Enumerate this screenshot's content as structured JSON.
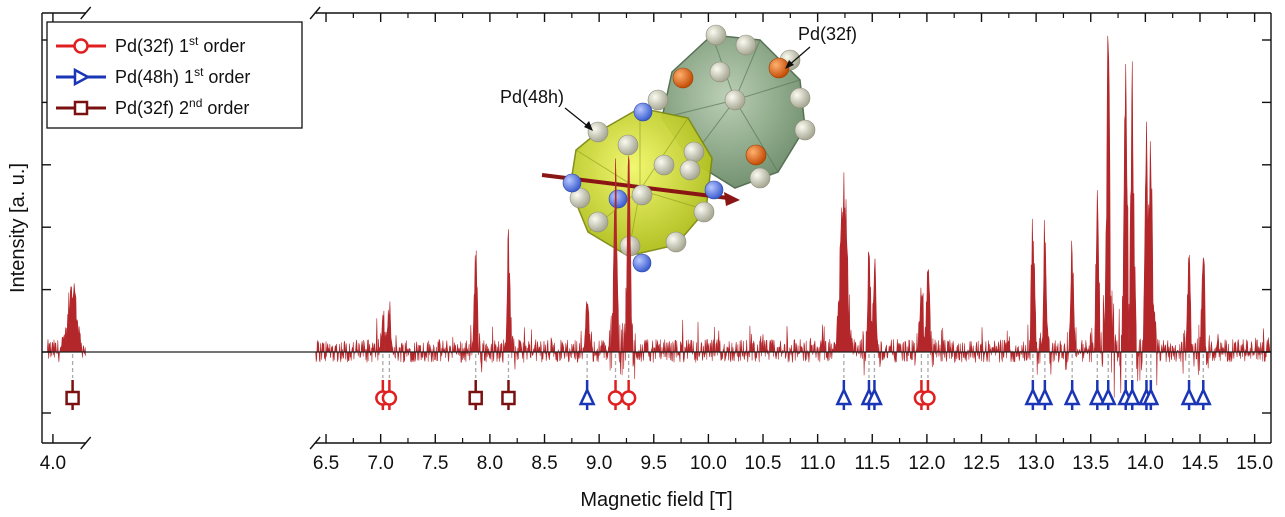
{
  "chart_data": {
    "type": "line",
    "xlabel": "Magnetic field [T]",
    "ylabel": "Intensity [a. u.]",
    "xlim": [
      3.9,
      15.15
    ],
    "axis_break": {
      "from": 4.3,
      "to": 6.4
    },
    "x_ticks": [
      4.0,
      6.5,
      7.0,
      7.5,
      8.0,
      8.5,
      9.0,
      9.5,
      10.0,
      10.5,
      11.0,
      11.5,
      12.0,
      12.5,
      13.0,
      13.5,
      14.0,
      14.5,
      15.0
    ],
    "x_tick_labels": [
      "4.0",
      "6.5",
      "7.0",
      "7.5",
      "8.0",
      "8.5",
      "9.0",
      "9.5",
      "10.0",
      "10.5",
      "11.0",
      "11.5",
      "12.0",
      "12.5",
      "13.0",
      "13.5",
      "14.0",
      "14.5",
      "15.0"
    ],
    "y_ticks_shown": true,
    "y_tick_labels_shown": false,
    "grid": false,
    "legend_position": "top-left",
    "spectrum": {
      "color": "#b3262a",
      "baseline_noise": 0.035,
      "peaks": [
        {
          "x": 4.18,
          "h": 0.2
        },
        {
          "x": 7.02,
          "h": 0.1
        },
        {
          "x": 7.08,
          "h": 0.14
        },
        {
          "x": 7.87,
          "h": 0.31
        },
        {
          "x": 8.17,
          "h": 0.33
        },
        {
          "x": 8.89,
          "h": 0.2
        },
        {
          "x": 9.15,
          "h": 0.63
        },
        {
          "x": 9.27,
          "h": 0.64
        },
        {
          "x": 11.24,
          "h": 0.53
        },
        {
          "x": 11.47,
          "h": 0.3
        },
        {
          "x": 11.52,
          "h": 0.26
        },
        {
          "x": 11.95,
          "h": 0.22
        },
        {
          "x": 12.01,
          "h": 0.26
        },
        {
          "x": 12.97,
          "h": 0.4
        },
        {
          "x": 13.08,
          "h": 0.38
        },
        {
          "x": 13.33,
          "h": 0.28
        },
        {
          "x": 13.56,
          "h": 0.44
        },
        {
          "x": 13.66,
          "h": 1.0
        },
        {
          "x": 13.82,
          "h": 0.9
        },
        {
          "x": 13.88,
          "h": 0.84
        },
        {
          "x": 14.01,
          "h": 0.67
        },
        {
          "x": 14.05,
          "h": 0.62
        },
        {
          "x": 14.4,
          "h": 0.27
        },
        {
          "x": 14.53,
          "h": 0.29
        }
      ]
    },
    "series": [
      {
        "name": "Pd(32f) 1st order",
        "name_base": "Pd(32f) 1",
        "name_sup": "st",
        "name_tail": " order",
        "marker": "circle",
        "color": "#e02020",
        "x": [
          7.02,
          7.08,
          9.15,
          9.27,
          11.95,
          12.01
        ]
      },
      {
        "name": "Pd(48h) 1st order",
        "name_base": "Pd(48h) 1",
        "name_sup": "st",
        "name_tail": " order",
        "marker": "triangle",
        "color": "#1a35b5",
        "x": [
          8.89,
          11.24,
          11.47,
          11.52,
          12.97,
          13.08,
          13.33,
          13.56,
          13.66,
          13.82,
          13.88,
          14.01,
          14.05,
          14.4,
          14.53
        ]
      },
      {
        "name": "Pd(32f) 2nd order",
        "name_base": "Pd(32f) 2",
        "name_sup": "nd",
        "name_tail": " order",
        "marker": "square",
        "color": "#7a1010",
        "x": [
          4.18,
          7.87,
          8.17
        ]
      }
    ],
    "annotations": [
      {
        "text": "Pd(48h)"
      },
      {
        "text": "Pd(32f)"
      }
    ]
  }
}
